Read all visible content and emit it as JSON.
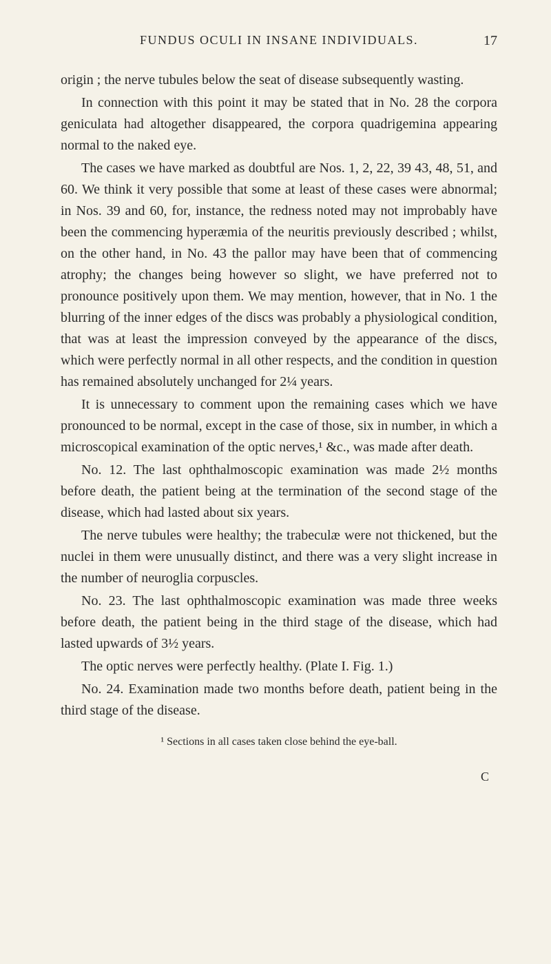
{
  "header": {
    "title": "FUNDUS OCULI IN INSANE INDIVIDUALS.",
    "page": "17"
  },
  "paragraphs": {
    "p1": "origin ; the nerve tubules below the seat of disease subsequently wasting.",
    "p2": "In connection with this point it may be stated that in No. 28 the corpora geniculata had altogether disappeared, the corpora quadrigemina appearing normal to the naked eye.",
    "p3": "The cases we have marked as doubtful are Nos. 1, 2, 22, 39 43, 48, 51, and 60. We think it very possible that some at least of these cases were abnormal; in Nos. 39 and 60, for, instance, the redness noted may not improbably have been the commencing hyperæmia of the neuritis previously described ; whilst, on the other hand, in No. 43 the pallor may have been that of commencing atrophy; the changes being however so slight, we have preferred not to pronounce positively upon them. We may mention, however, that in No. 1 the blurring of the inner edges of the discs was probably a physiological condition, that was at least the impression conveyed by the appearance of the discs, which were perfectly normal in all other respects, and the condition in question has remained absolutely unchanged for 2¼ years.",
    "p4": "It is unnecessary to comment upon the remaining cases which we have pronounced to be normal, except in the case of those, six in number, in which a microscopical examination of the optic nerves,¹ &c., was made after death.",
    "p5": "No. 12. The last ophthalmoscopic examination was made 2½ months before death, the patient being at the termination of the second stage of the disease, which had lasted about six years.",
    "p6": "The nerve tubules were healthy; the trabeculæ were not thickened, but the nuclei in them were unusually distinct, and there was a very slight increase in the number of neuroglia corpuscles.",
    "p7": "No. 23. The last ophthalmoscopic examination was made three weeks before death, the patient being in the third stage of the disease, which had lasted upwards of 3½ years.",
    "p8": "The optic nerves were perfectly healthy. (Plate I. Fig. 1.)",
    "p9": "No. 24. Examination made two months before death, patient being in the third stage of the disease.",
    "footnote": "¹ Sections in all cases taken close behind the eye-ball.",
    "sig": "C"
  },
  "colors": {
    "background": "#f5f2e8",
    "text": "#2a2a2a"
  },
  "typography": {
    "body_fontsize": 20,
    "header_fontsize": 18,
    "footnote_fontsize": 16,
    "line_height": 1.55,
    "font_family": "Georgia, Times New Roman, serif"
  }
}
